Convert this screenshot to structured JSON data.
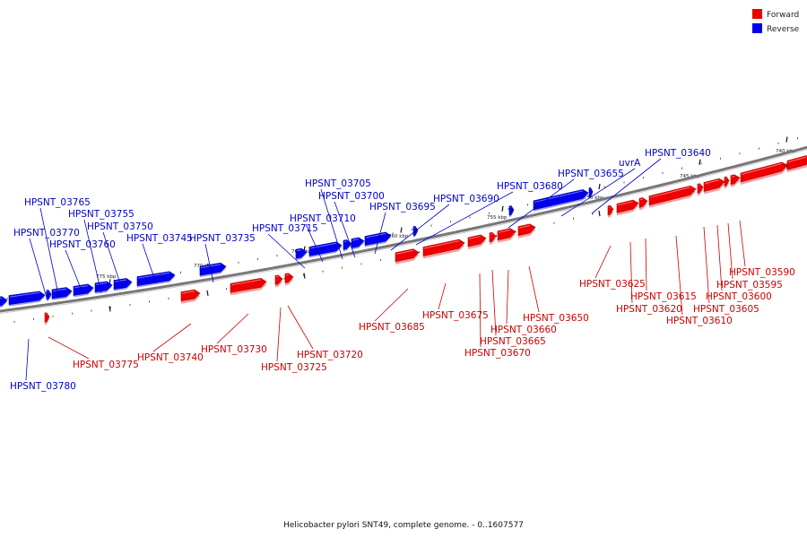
{
  "legend": [
    {
      "label": "Forward",
      "color": "#ee0000"
    },
    {
      "label": "Reverse",
      "color": "#0000ee"
    }
  ],
  "caption": "Helicobacter pylori SNT49, complete genome. - 0..1607577",
  "colors": {
    "forward": "#ee0000",
    "forward_side": "#f4a0a0",
    "reverse": "#0000ee",
    "reverse_side": "#9a9af4",
    "backbone": "#777777"
  },
  "ticks": [
    {
      "label": "740 kbp"
    },
    {
      "label": "745 kbp"
    },
    {
      "label": "750 kbp"
    },
    {
      "label": "755 kbp"
    },
    {
      "label": "760 kbp"
    },
    {
      "label": "765 kbp"
    },
    {
      "label": "770 kbp"
    },
    {
      "label": "775 kbp"
    }
  ],
  "genes": [
    {
      "name": "HPSNT_03590",
      "strand": "forward"
    },
    {
      "name": "HPSNT_03595",
      "strand": "forward"
    },
    {
      "name": "HPSNT_03600",
      "strand": "forward"
    },
    {
      "name": "HPSNT_03605",
      "strand": "forward"
    },
    {
      "name": "HPSNT_03610",
      "strand": "forward"
    },
    {
      "name": "HPSNT_03615",
      "strand": "forward"
    },
    {
      "name": "HPSNT_03620",
      "strand": "forward"
    },
    {
      "name": "HPSNT_03625",
      "strand": "forward"
    },
    {
      "name": "HPSNT_03640",
      "strand": "reverse"
    },
    {
      "name": "uvrA",
      "strand": "reverse"
    },
    {
      "name": "HPSNT_03655",
      "strand": "reverse"
    },
    {
      "name": "HPSNT_03650",
      "strand": "forward"
    },
    {
      "name": "HPSNT_03660",
      "strand": "forward"
    },
    {
      "name": "HPSNT_03665",
      "strand": "forward"
    },
    {
      "name": "HPSNT_03670",
      "strand": "forward"
    },
    {
      "name": "HPSNT_03675",
      "strand": "forward"
    },
    {
      "name": "HPSNT_03680",
      "strand": "reverse"
    },
    {
      "name": "HPSNT_03685",
      "strand": "forward"
    },
    {
      "name": "HPSNT_03690",
      "strand": "reverse"
    },
    {
      "name": "HPSNT_03695",
      "strand": "reverse"
    },
    {
      "name": "HPSNT_03700",
      "strand": "reverse"
    },
    {
      "name": "HPSNT_03705",
      "strand": "reverse"
    },
    {
      "name": "HPSNT_03710",
      "strand": "reverse"
    },
    {
      "name": "HPSNT_03715",
      "strand": "reverse"
    },
    {
      "name": "HPSNT_03720",
      "strand": "forward"
    },
    {
      "name": "HPSNT_03725",
      "strand": "forward"
    },
    {
      "name": "HPSNT_03730",
      "strand": "forward"
    },
    {
      "name": "HPSNT_03735",
      "strand": "reverse"
    },
    {
      "name": "HPSNT_03740",
      "strand": "forward"
    },
    {
      "name": "HPSNT_03745",
      "strand": "reverse"
    },
    {
      "name": "HPSNT_03750",
      "strand": "reverse"
    },
    {
      "name": "HPSNT_03755",
      "strand": "reverse"
    },
    {
      "name": "HPSNT_03760",
      "strand": "reverse"
    },
    {
      "name": "HPSNT_03765",
      "strand": "reverse"
    },
    {
      "name": "HPSNT_03770",
      "strand": "reverse"
    },
    {
      "name": "HPSNT_03775",
      "strand": "forward"
    },
    {
      "name": "HPSNT_03780",
      "strand": "reverse"
    }
  ]
}
